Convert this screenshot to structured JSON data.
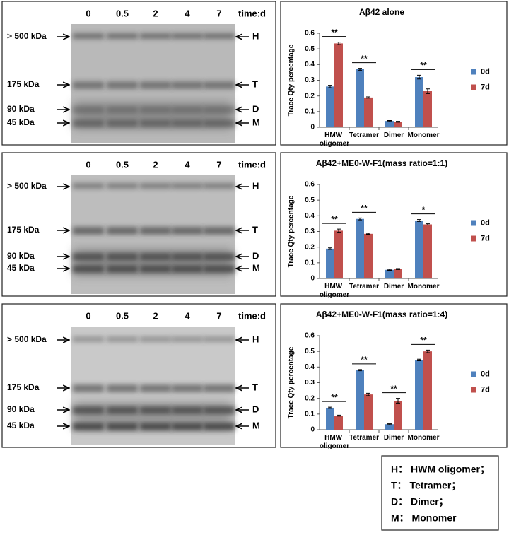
{
  "gels": [
    {
      "lanes": [
        "0",
        "0.5",
        "2",
        "4",
        "7"
      ],
      "time_label": "time:d",
      "markers": [
        "> 500 kDa",
        "175 kDa",
        "90 kDa",
        "45 kDa"
      ],
      "bands": [
        "H",
        "T",
        "D",
        "M"
      ]
    },
    {
      "lanes": [
        "0",
        "0.5",
        "2",
        "4",
        "7"
      ],
      "time_label": "time:d",
      "markers": [
        "> 500 kDa",
        "175 kDa",
        "90 kDa",
        "45 kDa"
      ],
      "bands": [
        "H",
        "T",
        "D",
        "M"
      ]
    },
    {
      "lanes": [
        "0",
        "0.5",
        "2",
        "4",
        "7"
      ],
      "time_label": "time:d",
      "markers": [
        "> 500 kDa",
        "175 kDa",
        "90 kDa",
        "45 kDa"
      ],
      "bands": [
        "H",
        "T",
        "D",
        "M"
      ]
    }
  ],
  "chart_data": [
    {
      "type": "bar",
      "title": "Aβ42 alone",
      "y_label": "Trace Qty percentage",
      "categories": [
        "HMW oligomer",
        "Tetramer",
        "Dimer",
        "Monomer"
      ],
      "series": [
        {
          "name": "0d",
          "color": "#4f81bd",
          "values": [
            0.26,
            0.37,
            0.04,
            0.32
          ],
          "errors": [
            0.008,
            0.006,
            0.003,
            0.012
          ]
        },
        {
          "name": "7d",
          "color": "#c0504d",
          "values": [
            0.535,
            0.19,
            0.035,
            0.23
          ],
          "errors": [
            0.008,
            0.004,
            0.003,
            0.015
          ]
        }
      ],
      "significance": [
        "**",
        "**",
        null,
        "**"
      ],
      "ylim": [
        0,
        0.6
      ],
      "yticks": [
        0,
        0.1,
        0.2,
        0.3,
        0.4,
        0.5,
        0.6
      ],
      "legend": "right"
    },
    {
      "type": "bar",
      "title": "Aβ42+ME0-W-F1(mass ratio=1:1)",
      "y_label": "Trace Qty percentage",
      "categories": [
        "HMW oligomer",
        "Tetramer",
        "Dimer",
        "Monomer"
      ],
      "series": [
        {
          "name": "0d",
          "color": "#4f81bd",
          "values": [
            0.19,
            0.38,
            0.055,
            0.37
          ],
          "errors": [
            0.005,
            0.006,
            0.003,
            0.006
          ]
        },
        {
          "name": "7d",
          "color": "#c0504d",
          "values": [
            0.305,
            0.285,
            0.06,
            0.345
          ],
          "errors": [
            0.01,
            0.003,
            0.003,
            0.004
          ]
        }
      ],
      "significance": [
        "**",
        "**",
        null,
        "*"
      ],
      "ylim": [
        0,
        0.6
      ],
      "yticks": [
        0,
        0.1,
        0.2,
        0.3,
        0.4,
        0.5,
        0.6
      ],
      "legend": "right"
    },
    {
      "type": "bar",
      "title": "Aβ42+ME0-W-F1(mass ratio=1:4)",
      "y_label": "Trace Qty percentage",
      "categories": [
        "HMW oligomer",
        "Tetramer",
        "Dimer",
        "Monomer"
      ],
      "series": [
        {
          "name": "0d",
          "color": "#4f81bd",
          "values": [
            0.14,
            0.38,
            0.035,
            0.445
          ],
          "errors": [
            0.004,
            0.004,
            0.003,
            0.005
          ]
        },
        {
          "name": "7d",
          "color": "#c0504d",
          "values": [
            0.09,
            0.225,
            0.185,
            0.5
          ],
          "errors": [
            0.003,
            0.008,
            0.015,
            0.008
          ]
        }
      ],
      "significance": [
        "**",
        "**",
        "**",
        "**"
      ],
      "ylim": [
        0,
        0.6
      ],
      "yticks": [
        0,
        0.1,
        0.2,
        0.3,
        0.4,
        0.5,
        0.6
      ],
      "legend": "right"
    }
  ],
  "key_box": [
    "H： HWM oligomer；",
    "T： Tetramer；",
    "D： Dimer；",
    "M： Monomer"
  ]
}
